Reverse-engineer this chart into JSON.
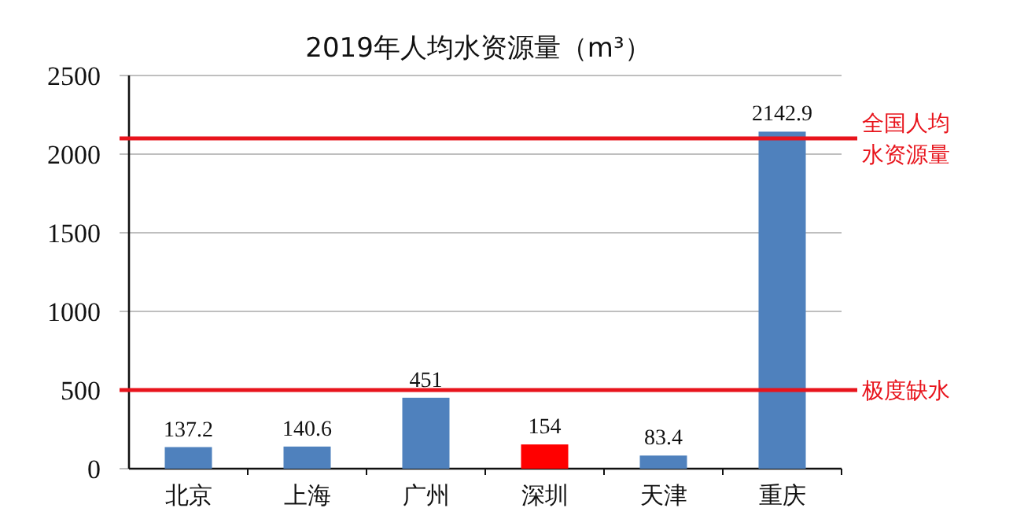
{
  "chart_data": {
    "type": "bar",
    "title": "2019年人均水资源量（m³）",
    "categories": [
      "北京",
      "上海",
      "广州",
      "深圳",
      "天津",
      "重庆"
    ],
    "values": [
      137.2,
      140.6,
      451,
      154,
      83.4,
      2142.9
    ],
    "colors": [
      "#4f81bd",
      "#4f81bd",
      "#4f81bd",
      "#ff0000",
      "#4f81bd",
      "#4f81bd"
    ],
    "ylim": [
      0,
      2500
    ],
    "yticks": [
      0,
      500,
      1000,
      1500,
      2000,
      2500
    ],
    "grid": "y",
    "data_labels": true,
    "ref_lines": [
      {
        "axis": "y",
        "value": 2100,
        "label": "全国人均水资源量",
        "color": "#e8141c"
      },
      {
        "axis": "y",
        "value": 500,
        "label": "极度缺水",
        "color": "#e8141c"
      }
    ]
  }
}
